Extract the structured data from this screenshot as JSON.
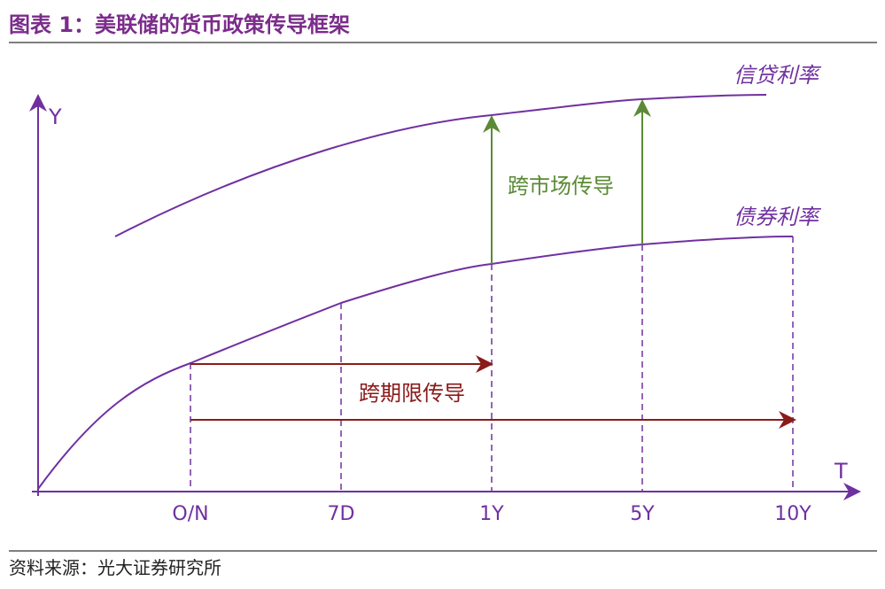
{
  "header": {
    "title": "图表 1：美联储的货币政策传导框架"
  },
  "axes": {
    "y_label": "Y",
    "x_label": "T"
  },
  "curves": {
    "upper": "信贷利率",
    "lower": "债券利率"
  },
  "arrows": {
    "cross_market": "跨市场传导",
    "cross_term": "跨期限传导"
  },
  "x_ticks": [
    "O/N",
    "7D",
    "1Y",
    "5Y",
    "10Y"
  ],
  "footer": {
    "source": "资料来源：光大证券研究所"
  }
}
